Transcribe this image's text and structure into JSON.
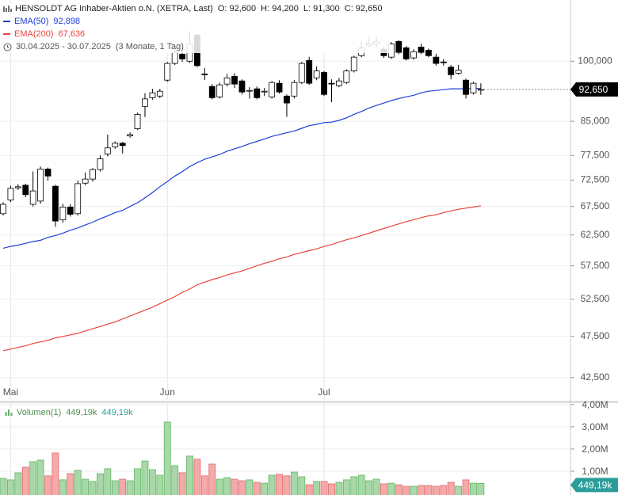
{
  "chart_data": [
    {
      "type": "candlestick",
      "title": "HENSOLDT AG Inhaber-Aktien o.N. (XETRA, Last)",
      "ohlc_labels": [
        "O: 92,600",
        "H: 94,200",
        "L: 91,300",
        "C: 92,650"
      ],
      "date_range": "30.04.2025 - 30.07.2025",
      "period": "(3 Monate, 1 Tag)",
      "last_label": "92,650",
      "categories": [
        null,
        "Mai",
        null,
        null,
        null,
        null,
        null,
        null,
        null,
        null,
        null,
        null,
        null,
        null,
        null,
        null,
        null,
        null,
        null,
        null,
        null,
        null,
        "Jun",
        null,
        null,
        null,
        null,
        null,
        null,
        null,
        null,
        null,
        null,
        null,
        null,
        null,
        null,
        null,
        null,
        null,
        null,
        null,
        null,
        "Jul",
        null,
        null,
        null,
        null,
        null,
        null,
        null,
        null,
        null,
        null,
        null,
        null,
        null,
        null,
        null,
        null,
        null,
        null,
        null,
        null,
        null
      ],
      "open": [
        66200,
        68700,
        71000,
        71500,
        67900,
        68500,
        74700,
        71300,
        65100,
        67400,
        66200,
        71900,
        72700,
        74600,
        77800,
        79300,
        80100,
        81700,
        83300,
        88500,
        90600,
        91000,
        95000,
        99400,
        101900,
        100000,
        107300,
        96600,
        93400,
        90800,
        94000,
        96000,
        94800,
        92200,
        92800,
        92000,
        90800,
        94200,
        91000,
        91000,
        94400,
        100200,
        95600,
        97000,
        94200,
        93600,
        94400,
        97400,
        101500,
        104400,
        104800,
        103300,
        101100,
        105500,
        103700,
        100900,
        103900,
        103000,
        101100,
        99800,
        98400,
        96800,
        95000,
        91800,
        92600
      ],
      "high": [
        68300,
        71400,
        71700,
        71800,
        74200,
        75200,
        75000,
        71600,
        68000,
        67900,
        72400,
        74000,
        74900,
        77500,
        82000,
        80500,
        80400,
        82500,
        87000,
        91700,
        92800,
        92800,
        99800,
        103300,
        103000,
        108500,
        107600,
        98200,
        94000,
        94400,
        96600,
        96800,
        95200,
        93200,
        93400,
        93000,
        94800,
        95000,
        91400,
        95000,
        99800,
        101200,
        98600,
        97400,
        95200,
        95600,
        97800,
        101500,
        105500,
        106800,
        107100,
        103900,
        105300,
        105800,
        104200,
        103300,
        104800,
        103500,
        102000,
        100600,
        99000,
        99000,
        95400,
        94600,
        94200
      ],
      "low": [
        65900,
        68300,
        70600,
        69200,
        67500,
        68000,
        72400,
        63900,
        64600,
        65700,
        65900,
        71500,
        72200,
        74200,
        77300,
        78900,
        77900,
        81300,
        83000,
        86000,
        90100,
        90500,
        94600,
        99000,
        99800,
        99600,
        98400,
        95000,
        90200,
        90400,
        93400,
        93000,
        91400,
        90400,
        90200,
        91000,
        90400,
        91600,
        86000,
        90400,
        94000,
        93800,
        95000,
        91000,
        89500,
        93200,
        94000,
        97000,
        101100,
        103900,
        103700,
        100900,
        100600,
        101900,
        100200,
        100400,
        101900,
        101100,
        98800,
        98800,
        95200,
        96400,
        90400,
        91400,
        91300
      ],
      "close": [
        67900,
        70900,
        71200,
        69700,
        70400,
        74700,
        73300,
        64900,
        67400,
        66100,
        71800,
        72700,
        74600,
        76800,
        79100,
        80100,
        79600,
        82000,
        86600,
        90300,
        91800,
        92200,
        99400,
        102400,
        100600,
        104800,
        98800,
        96400,
        90600,
        93800,
        95600,
        94000,
        92000,
        92400,
        90600,
        92200,
        94400,
        92000,
        89300,
        94400,
        99400,
        94200,
        97400,
        91400,
        94000,
        94800,
        97400,
        101100,
        103700,
        105000,
        105500,
        101500,
        104800,
        102400,
        100600,
        102600,
        102400,
        101500,
        99400,
        99600,
        96400,
        97600,
        91400,
        94200,
        92650
      ],
      "candle_colors": {
        "up": "#ffffff",
        "down": "#000000",
        "border": "#000000"
      },
      "series": [
        {
          "name": "EMA(50)",
          "color": "#1e3ed6",
          "last_value_label": "92,898",
          "values": [
            60300,
            60600,
            60800,
            61100,
            61400,
            61600,
            62100,
            62400,
            62800,
            63300,
            63700,
            64200,
            64700,
            65300,
            65800,
            66400,
            66800,
            67500,
            68200,
            69100,
            70100,
            71200,
            72200,
            73300,
            74200,
            75200,
            76000,
            76700,
            77200,
            77700,
            78400,
            78900,
            79400,
            80000,
            80500,
            81000,
            81600,
            82000,
            82400,
            82800,
            83400,
            84000,
            84300,
            84700,
            84800,
            85200,
            85800,
            86600,
            87300,
            88100,
            88700,
            89300,
            89900,
            90400,
            90800,
            91200,
            91800,
            92200,
            92400,
            92600,
            92800,
            92800,
            92800,
            92900,
            92898
          ]
        },
        {
          "name": "EMA(200)",
          "color": "#e8453c",
          "last_value_label": "67,636",
          "values": [
            45700,
            45900,
            46100,
            46300,
            46600,
            46800,
            47000,
            47300,
            47500,
            47700,
            47900,
            48200,
            48500,
            48800,
            49100,
            49400,
            49800,
            50200,
            50600,
            51000,
            51400,
            51900,
            52400,
            52900,
            53500,
            54000,
            54600,
            55000,
            55400,
            55700,
            56100,
            56400,
            56700,
            57100,
            57500,
            57900,
            58200,
            58600,
            58900,
            59300,
            59600,
            59900,
            60200,
            60600,
            60900,
            61300,
            61700,
            62000,
            62400,
            62800,
            63200,
            63600,
            64000,
            64400,
            64800,
            65100,
            65500,
            65800,
            66000,
            66400,
            66700,
            67000,
            67200,
            67400,
            67636
          ]
        }
      ],
      "log_scale": true,
      "ylim": [
        40000,
        118000
      ],
      "yticks": [
        {
          "value": 42500,
          "label": "42,500"
        },
        {
          "value": 47500,
          "label": "47,500"
        },
        {
          "value": 52500,
          "label": "52,500"
        },
        {
          "value": 57500,
          "label": "57,500"
        },
        {
          "value": 62500,
          "label": "62,500"
        },
        {
          "value": 67500,
          "label": "67,500"
        },
        {
          "value": 72500,
          "label": "72,500"
        },
        {
          "value": 77500,
          "label": "77,500"
        },
        {
          "value": 85000,
          "label": "85,000"
        },
        {
          "value": 100000,
          "label": "100,000"
        }
      ],
      "grid": true
    },
    {
      "type": "bar",
      "series": [
        {
          "name": "Volumen(1)",
          "last_value_label": "449,19k",
          "colors": {
            "up": "#a8d8a8",
            "down": "#f5a9a9",
            "up_border": "#5fb463",
            "down_border": "#e06a6a"
          },
          "values": [
            680000,
            610000,
            930000,
            1180000,
            1430000,
            1500000,
            790000,
            1820000,
            610000,
            890000,
            1040000,
            640000,
            540000,
            890000,
            1110000,
            570000,
            640000,
            570000,
            1110000,
            1460000,
            1070000,
            820000,
            3210000,
            1250000,
            930000,
            1680000,
            1540000,
            790000,
            1320000,
            640000,
            710000,
            640000,
            570000,
            610000,
            500000,
            460000,
            820000,
            860000,
            790000,
            960000,
            750000,
            390000,
            540000,
            540000,
            430000,
            500000,
            610000,
            750000,
            820000,
            570000,
            640000,
            430000,
            460000,
            390000,
            320000,
            320000,
            360000,
            360000,
            320000,
            360000,
            500000,
            320000,
            610000,
            460000,
            449190
          ]
        }
      ],
      "ylim": [
        0,
        4100000
      ],
      "yticks": [
        {
          "value": 1000000,
          "label": "1,00M"
        },
        {
          "value": 2000000,
          "label": "2,00M"
        },
        {
          "value": 3000000,
          "label": "3,00M"
        },
        {
          "value": 4000000,
          "label": "4,00M"
        }
      ],
      "grid": true
    }
  ]
}
